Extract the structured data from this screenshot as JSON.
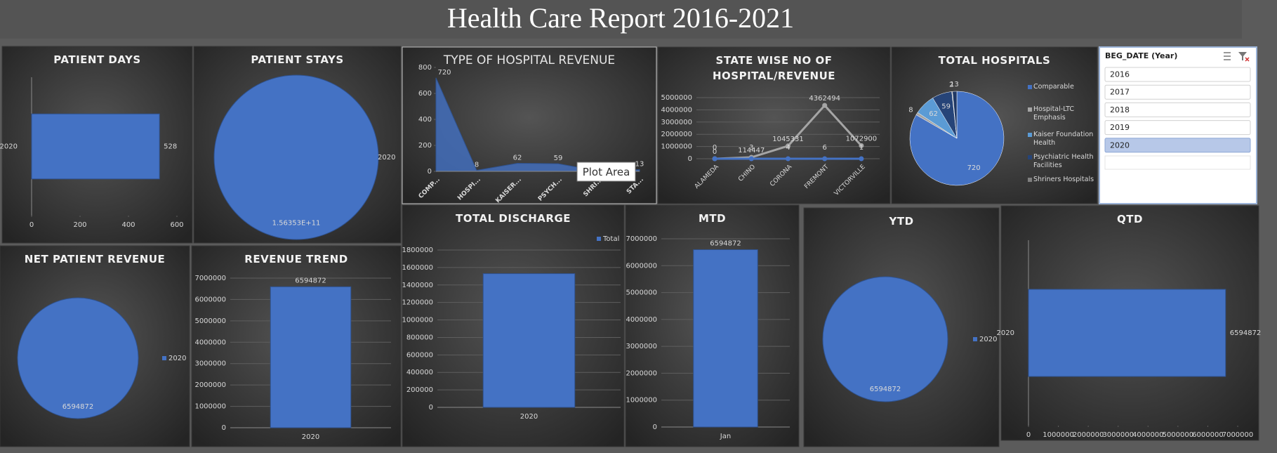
{
  "header": {
    "title": "Health Care Report 2016-2021"
  },
  "slicer": {
    "title": "BEG_DATE (Year)",
    "items": [
      "2016",
      "2017",
      "2018",
      "2019",
      "2020"
    ],
    "selected": "2020"
  },
  "chart_data": [
    {
      "type": "bar",
      "orientation": "horizontal",
      "title": "PATIENT DAYS",
      "categories": [
        "2020"
      ],
      "values": [
        528
      ],
      "color": "#4472c4",
      "xlim": [
        0,
        600
      ],
      "xticks": [
        0,
        200,
        400,
        600
      ],
      "data_labels": true
    },
    {
      "type": "pie",
      "title": "PATIENT STAYS",
      "categories": [
        "2020"
      ],
      "values": [
        156353000000
      ],
      "value_labels": [
        "1.56353E+11"
      ],
      "colors": [
        "#4472c4"
      ],
      "legend": "right",
      "data_labels": true
    },
    {
      "type": "area",
      "title": "TYPE OF HOSPITAL REVENUE",
      "categories": [
        "COMP...",
        "HOSPI...",
        "KAISER...",
        "PSYCH...",
        "SHRI...",
        "STA..."
      ],
      "values": [
        720,
        8,
        62,
        59,
        2,
        13
      ],
      "color": "#4472c4",
      "ylim": [
        0,
        800
      ],
      "yticks": [
        0,
        200,
        400,
        600,
        800
      ],
      "data_labels": true,
      "annotation": "Plot Area"
    },
    {
      "type": "line",
      "title": "STATE WISE NO OF HOSPITAL/REVENUE",
      "categories": [
        "ALAMEDA",
        "CHINO",
        "CORONA",
        "FREMONT",
        "VICTORVILLE"
      ],
      "series": [
        {
          "color": "#a5a5a5",
          "values": [
            0,
            114447,
            1045331,
            4362494,
            1072900
          ]
        },
        {
          "color": "#4472c4",
          "values": [
            0,
            3,
            4,
            6,
            1
          ]
        }
      ],
      "ylim": [
        0,
        5000000
      ],
      "yticks": [
        0,
        1000000,
        2000000,
        3000000,
        4000000,
        5000000
      ],
      "grid": true,
      "data_labels": true
    },
    {
      "type": "pie",
      "title": "TOTAL HOSPITALS",
      "categories": [
        "Comparable",
        "Hospital-LTC Emphasis",
        "Kaiser Foundation Health",
        "Psychiatric Health Facilities",
        "Shriners Hospitals",
        null
      ],
      "values": [
        720,
        8,
        62,
        59,
        2,
        13
      ],
      "colors": [
        "#4472c4",
        "#a5a5a5",
        "#5b9bd5",
        "#264478",
        "#7f7f7f",
        "#203864"
      ],
      "legend": "right",
      "data_labels": true
    },
    {
      "type": "pie",
      "title": "NET PATIENT REVENUE",
      "categories": [
        "2020"
      ],
      "values": [
        6594872
      ],
      "colors": [
        "#4472c4"
      ],
      "legend": "right",
      "data_labels": true
    },
    {
      "type": "bar",
      "title": "REVENUE TREND",
      "categories": [
        "2020"
      ],
      "values": [
        6594872
      ],
      "color": "#4472c4",
      "ylim": [
        0,
        7000000
      ],
      "yticks": [
        0,
        1000000,
        2000000,
        3000000,
        4000000,
        5000000,
        6000000,
        7000000
      ],
      "grid": true,
      "data_labels": true
    },
    {
      "type": "bar",
      "title": "TOTAL DISCHARGE",
      "categories": [
        "2020"
      ],
      "series": [
        {
          "name": "Total",
          "color": "#4472c4",
          "values": [
            1530000
          ]
        }
      ],
      "ylim": [
        0,
        1800000
      ],
      "yticks": [
        0,
        200000,
        400000,
        600000,
        800000,
        1000000,
        1200000,
        1400000,
        1600000,
        1800000
      ],
      "grid": true,
      "legend": "top-right",
      "data_labels": false
    },
    {
      "type": "bar",
      "title": "MTD",
      "categories": [
        "Jan"
      ],
      "values": [
        6594872
      ],
      "color": "#4472c4",
      "ylim": [
        0,
        7000000
      ],
      "yticks": [
        0,
        1000000,
        2000000,
        3000000,
        4000000,
        5000000,
        6000000,
        7000000
      ],
      "grid": true,
      "data_labels": true
    },
    {
      "type": "pie",
      "title": "YTD",
      "categories": [
        "2020"
      ],
      "values": [
        6594872
      ],
      "colors": [
        "#4472c4"
      ],
      "legend": "right",
      "data_labels": true
    },
    {
      "type": "bar",
      "orientation": "horizontal",
      "title": "QTD",
      "categories": [
        "2020"
      ],
      "values": [
        6594872
      ],
      "color": "#4472c4",
      "xlim": [
        0,
        7000000
      ],
      "xticks": [
        0,
        1000000,
        2000000,
        3000000,
        4000000,
        5000000,
        6000000,
        7000000
      ],
      "data_labels": true
    }
  ]
}
